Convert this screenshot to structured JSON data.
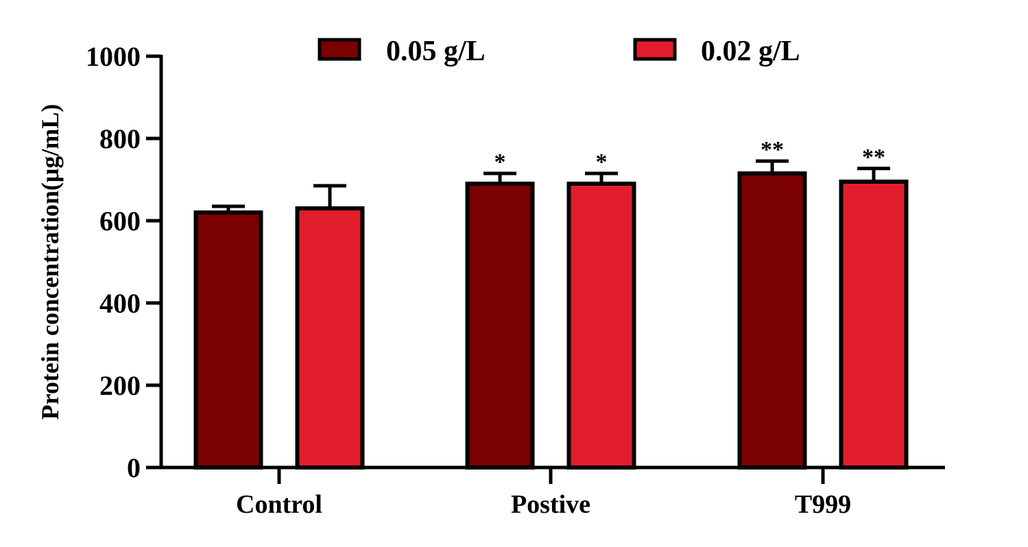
{
  "chart_data": {
    "type": "bar",
    "title": "",
    "xlabel": "",
    "ylabel": "Protein concentration(μg/mL)",
    "ylim": [
      0,
      1000
    ],
    "yticks": [
      0,
      200,
      400,
      600,
      800,
      1000
    ],
    "categories": [
      "Control",
      "Postive",
      "T999"
    ],
    "series": [
      {
        "name": "0.05 g/L",
        "color": "#7b0000",
        "values": [
          620,
          690,
          715
        ],
        "errors": [
          15,
          25,
          30
        ],
        "significance": [
          "",
          "*",
          "**"
        ]
      },
      {
        "name": "0.02 g/L",
        "color": "#e31e2c",
        "values": [
          630,
          690,
          695
        ],
        "errors": [
          55,
          25,
          32
        ],
        "significance": [
          "",
          "*",
          "**"
        ]
      }
    ],
    "legend_position": "top",
    "grid": false
  }
}
